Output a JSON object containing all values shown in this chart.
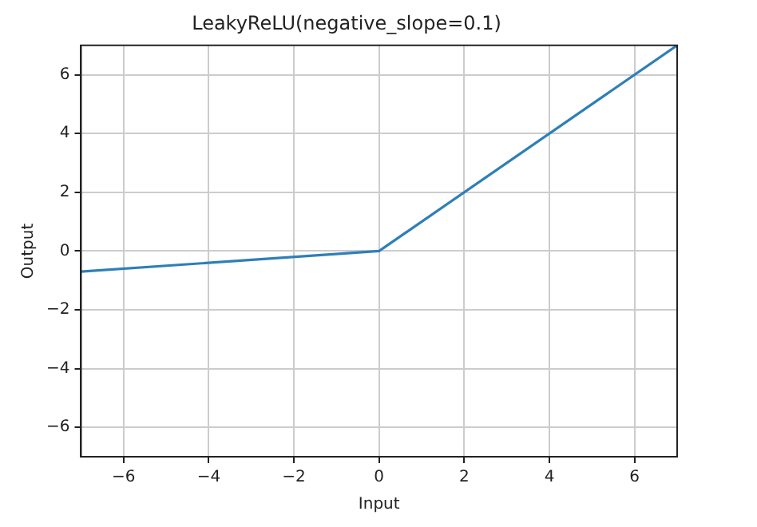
{
  "chart_data": {
    "type": "line",
    "title": "LeakyReLU(negative_slope=0.1)",
    "xlabel": "Input",
    "ylabel": "Output",
    "x": [
      -7,
      0,
      7
    ],
    "series": [
      {
        "color": "#2e7fb8",
        "values": [
          -0.7,
          0,
          7
        ]
      }
    ],
    "xlim": [
      -7,
      7
    ],
    "ylim": [
      -7,
      7
    ],
    "xticks": [
      -6,
      -4,
      -2,
      0,
      2,
      4,
      6
    ],
    "yticks": [
      -6,
      -4,
      -2,
      0,
      2,
      4,
      6
    ],
    "grid": true,
    "legend": false,
    "marker": "none",
    "line_style": "solid"
  }
}
